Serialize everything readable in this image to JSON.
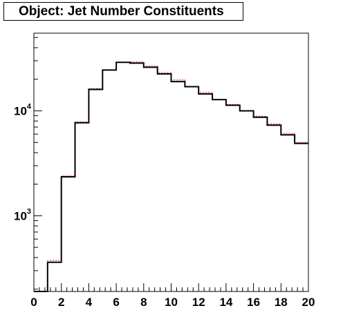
{
  "title": "Object: Jet Number Constituents",
  "chart_data": {
    "type": "histogram",
    "title": "Object: Jet Number Constituents",
    "xlabel": "",
    "ylabel": "",
    "xlim": [
      0,
      20
    ],
    "ylim": [
      190,
      55000
    ],
    "y_scale": "log",
    "x_ticks": [
      0,
      2,
      4,
      6,
      8,
      10,
      12,
      14,
      16,
      18,
      20
    ],
    "y_ticks": [
      {
        "value": 1000,
        "base": "10",
        "exp": "3"
      },
      {
        "value": 10000,
        "base": "10",
        "exp": "4"
      }
    ],
    "grid": false,
    "bin_edges": [
      0,
      1,
      2,
      3,
      4,
      5,
      6,
      7,
      8,
      9,
      10,
      11,
      12,
      13,
      14,
      15,
      16,
      17,
      18,
      19,
      20
    ],
    "series": [
      {
        "color": "#000000",
        "style": "solid",
        "values": [
          190,
          360,
          2350,
          7700,
          16000,
          24500,
          29000,
          28500,
          26000,
          22500,
          19000,
          17000,
          14500,
          12800,
          11300,
          10000,
          8700,
          7300,
          5900,
          4900
        ]
      },
      {
        "color": "#ff0000",
        "style": "dotted",
        "values": [
          190,
          375,
          2400,
          7850,
          16300,
          24500,
          29000,
          29200,
          26700,
          23200,
          19700,
          17000,
          15000,
          12800,
          11500,
          10000,
          8900,
          7500,
          6100,
          5000
        ]
      }
    ]
  }
}
